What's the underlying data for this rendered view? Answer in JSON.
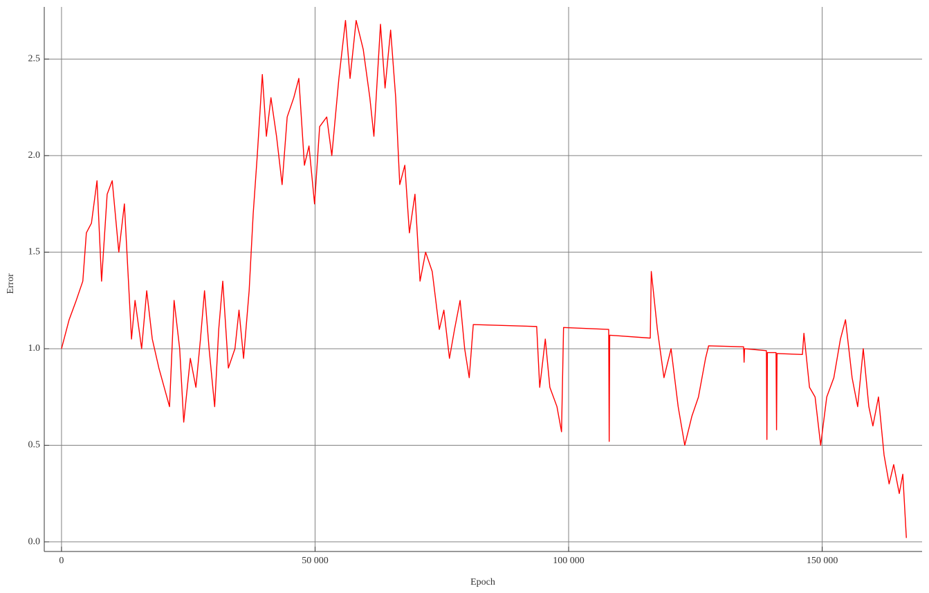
{
  "chart_data": {
    "type": "line",
    "xlabel": "Epoch",
    "ylabel": "Error",
    "x": [
      0,
      1500,
      2900,
      4200,
      4900,
      5900,
      7000,
      7900,
      9000,
      10000,
      11300,
      12400,
      13800,
      14500,
      15800,
      16800,
      17900,
      19200,
      21300,
      22200,
      23300,
      24100,
      25400,
      26500,
      27400,
      28200,
      29100,
      30200,
      31000,
      31800,
      32900,
      34200,
      35000,
      35900,
      37000,
      37800,
      38600,
      39600,
      40400,
      41300,
      42400,
      43500,
      44500,
      45800,
      46800,
      47900,
      48800,
      49900,
      50900,
      52300,
      53300,
      54700,
      56000,
      56900,
      58100,
      59500,
      60800,
      61600,
      62900,
      63800,
      64900,
      65900,
      66700,
      67700,
      68600,
      69700,
      70700,
      71800,
      73100,
      74500,
      75400,
      76500,
      77500,
      78600,
      79500,
      80400,
      81200,
      93700,
      94300,
      95400,
      96300,
      97700,
      98600,
      99000,
      107900,
      108000,
      108100,
      116100,
      116300,
      117500,
      118800,
      120200,
      121600,
      122900,
      124300,
      125600,
      127000,
      127600,
      134500,
      134600,
      134700,
      139000,
      139100,
      139200,
      140900,
      141000,
      141100,
      146100,
      146400,
      147500,
      148600,
      149700,
      150900,
      152300,
      153600,
      154600,
      155900,
      157000,
      158100,
      159200,
      160000,
      161100,
      162200,
      163200,
      164100,
      165200,
      165900,
      166600
    ],
    "series": [
      {
        "name": "Error",
        "color": "#ff0000",
        "values": [
          1.0,
          1.15,
          1.25,
          1.35,
          1.6,
          1.65,
          1.87,
          1.35,
          1.8,
          1.87,
          1.5,
          1.75,
          1.05,
          1.25,
          1.0,
          1.3,
          1.05,
          0.9,
          0.7,
          1.25,
          1.0,
          0.62,
          0.95,
          0.8,
          1.05,
          1.3,
          1.0,
          0.7,
          1.1,
          1.35,
          0.9,
          1.0,
          1.2,
          0.95,
          1.3,
          1.7,
          2.0,
          2.42,
          2.1,
          2.3,
          2.1,
          1.85,
          2.2,
          2.3,
          2.4,
          1.95,
          2.05,
          1.75,
          2.15,
          2.2,
          2.0,
          2.4,
          2.7,
          2.4,
          2.7,
          2.55,
          2.3,
          2.1,
          2.68,
          2.35,
          2.65,
          2.3,
          1.85,
          1.95,
          1.6,
          1.8,
          1.35,
          1.5,
          1.4,
          1.1,
          1.2,
          0.95,
          1.1,
          1.25,
          1.0,
          0.85,
          1.125,
          1.115,
          0.8,
          1.05,
          0.8,
          0.7,
          0.57,
          1.11,
          1.1,
          0.52,
          1.07,
          1.055,
          1.4,
          1.1,
          0.85,
          1.0,
          0.7,
          0.5,
          0.65,
          0.75,
          0.95,
          1.015,
          1.01,
          0.93,
          1.0,
          0.99,
          0.53,
          0.98,
          0.98,
          0.58,
          0.975,
          0.97,
          1.08,
          0.8,
          0.75,
          0.5,
          0.75,
          0.85,
          1.05,
          1.15,
          0.85,
          0.7,
          1.0,
          0.7,
          0.6,
          0.75,
          0.45,
          0.3,
          0.4,
          0.25,
          0.35,
          0.02
        ]
      }
    ],
    "xlim": [
      -3400,
      169700
    ],
    "xticks": [
      0,
      {
        "value": 50000,
        "label": "50 000"
      },
      {
        "value": 100000,
        "label": "100 000"
      },
      {
        "value": 150000,
        "label": "150 000"
      }
    ],
    "ylim": [
      -0.05,
      2.77
    ],
    "yticks": [
      {
        "value": 0,
        "label": "0.0"
      },
      0.5,
      {
        "value": 1,
        "label": "1.0"
      },
      1.5,
      {
        "value": 2,
        "label": "2.0"
      },
      2.5
    ],
    "grid": true
  }
}
